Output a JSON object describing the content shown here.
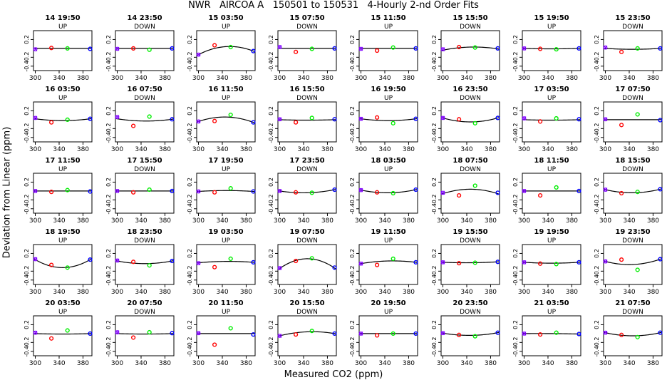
{
  "title": "NWR   AIRCOA A   150501 to 150531   4-Hourly 2-nd Order Fits",
  "chart_data": {
    "type": "scatter",
    "title": "NWR   AIRCOA A   150501 to 150531   4-Hourly 2-nd Order Fits",
    "xlabel": "Measured CO2 (ppm)",
    "ylabel": "Deviation from Linear (ppm)",
    "xlim": [
      297,
      395
    ],
    "ylim": [
      -0.5,
      0.4
    ],
    "xticks": [
      "300",
      "340",
      "380"
    ],
    "yticks": [
      "-0.4",
      "-0.2",
      "0.2"
    ],
    "grid": false,
    "legend": "none",
    "colors": {
      "ref_low": "#8000ff",
      "ref_mid": "#ff0000",
      "ref_mid2": "#00ee00",
      "ref_high": "#0000ff",
      "fit": "#000000"
    },
    "panels": [
      {
        "title": "14 19:50",
        "dir": "UP",
        "points": [
          [
            300,
            -0.02
          ],
          [
            327,
            0.01
          ],
          [
            354,
            0.0
          ],
          [
            392,
            -0.01
          ]
        ],
        "fit": [
          0.0,
          0.0,
          0.0
        ]
      },
      {
        "title": "14 23:50",
        "dir": "DOWN",
        "points": [
          [
            300,
            -0.01
          ],
          [
            327,
            0.0
          ],
          [
            354,
            -0.03
          ],
          [
            392,
            0.0
          ]
        ],
        "fit": [
          0.0,
          0.0,
          0.0
        ]
      },
      {
        "title": "15 03:50",
        "dir": "UP",
        "points": [
          [
            300,
            -0.14
          ],
          [
            327,
            0.07
          ],
          [
            354,
            0.03
          ],
          [
            392,
            -0.06
          ]
        ],
        "fit": [
          -0.14,
          0.04,
          -0.06
        ]
      },
      {
        "title": "15 07:50",
        "dir": "DOWN",
        "points": [
          [
            300,
            0.03
          ],
          [
            327,
            -0.08
          ],
          [
            354,
            -0.01
          ],
          [
            392,
            0.0
          ]
        ],
        "fit": [
          0.0,
          0.0,
          0.0
        ]
      },
      {
        "title": "15 11:50",
        "dir": "UP",
        "points": [
          [
            300,
            -0.01
          ],
          [
            327,
            -0.05
          ],
          [
            354,
            0.02
          ],
          [
            392,
            0.0
          ]
        ],
        "fit": [
          0.0,
          0.0,
          0.0
        ]
      },
      {
        "title": "15 15:50",
        "dir": "DOWN",
        "points": [
          [
            300,
            -0.02
          ],
          [
            327,
            0.03
          ],
          [
            354,
            0.02
          ],
          [
            392,
            0.0
          ]
        ],
        "fit": [
          -0.04,
          0.03,
          -0.01
        ]
      },
      {
        "title": "15 19:50",
        "dir": "UP",
        "points": [
          [
            300,
            0.0
          ],
          [
            327,
            -0.01
          ],
          [
            354,
            -0.02
          ],
          [
            392,
            0.0
          ]
        ],
        "fit": [
          0.0,
          -0.01,
          0.0
        ]
      },
      {
        "title": "15 23:50",
        "dir": "DOWN",
        "points": [
          [
            300,
            0.02
          ],
          [
            327,
            -0.08
          ],
          [
            354,
            0.0
          ],
          [
            392,
            0.0
          ]
        ],
        "fit": [
          0.0,
          -0.02,
          0.0
        ]
      },
      {
        "title": "16 03:50",
        "dir": "UP",
        "points": [
          [
            300,
            0.04
          ],
          [
            327,
            -0.06
          ],
          [
            354,
            0.0
          ],
          [
            392,
            0.02
          ]
        ],
        "fit": [
          0.02,
          -0.02,
          0.02
        ]
      },
      {
        "title": "16 07:50",
        "dir": "DOWN",
        "points": [
          [
            300,
            0.06
          ],
          [
            327,
            -0.14
          ],
          [
            354,
            0.07
          ],
          [
            392,
            0.01
          ]
        ],
        "fit": [
          0.02,
          -0.03,
          0.01
        ]
      },
      {
        "title": "16 11:50",
        "dir": "UP",
        "points": [
          [
            300,
            -0.04
          ],
          [
            327,
            -0.03
          ],
          [
            354,
            0.11
          ],
          [
            392,
            -0.06
          ]
        ],
        "fit": [
          -0.04,
          0.06,
          -0.06
        ]
      },
      {
        "title": "16 15:50",
        "dir": "DOWN",
        "points": [
          [
            300,
            0.01
          ],
          [
            327,
            -0.06
          ],
          [
            354,
            0.04
          ],
          [
            392,
            0.01
          ]
        ],
        "fit": [
          0.0,
          -0.01,
          0.0
        ]
      },
      {
        "title": "16 19:50",
        "dir": "UP",
        "points": [
          [
            300,
            0.02
          ],
          [
            327,
            0.05
          ],
          [
            354,
            -0.08
          ],
          [
            392,
            0.02
          ]
        ],
        "fit": [
          0.02,
          -0.02,
          0.02
        ]
      },
      {
        "title": "16 23:50",
        "dir": "DOWN",
        "points": [
          [
            300,
            0.04
          ],
          [
            327,
            0.01
          ],
          [
            354,
            -0.08
          ],
          [
            392,
            0.04
          ]
        ],
        "fit": [
          0.04,
          -0.05,
          0.04
        ]
      },
      {
        "title": "17 03:50",
        "dir": "UP",
        "points": [
          [
            300,
            0.03
          ],
          [
            327,
            -0.04
          ],
          [
            354,
            0.03
          ],
          [
            392,
            0.01
          ]
        ],
        "fit": [
          0.0,
          -0.01,
          0.0
        ]
      },
      {
        "title": "17 07:50",
        "dir": "DOWN",
        "points": [
          [
            300,
            0.01
          ],
          [
            327,
            -0.12
          ],
          [
            354,
            0.12
          ],
          [
            392,
            -0.01
          ]
        ],
        "fit": [
          0.0,
          0.0,
          0.0
        ]
      },
      {
        "title": "17 11:50",
        "dir": "UP",
        "points": [
          [
            300,
            0.0
          ],
          [
            327,
            -0.02
          ],
          [
            354,
            0.02
          ],
          [
            392,
            -0.01
          ]
        ],
        "fit": [
          0.0,
          0.0,
          0.0
        ]
      },
      {
        "title": "17 15:50",
        "dir": "DOWN",
        "points": [
          [
            300,
            0.0
          ],
          [
            327,
            -0.03
          ],
          [
            354,
            0.03
          ],
          [
            392,
            0.0
          ]
        ],
        "fit": [
          0.0,
          0.0,
          0.0
        ]
      },
      {
        "title": "17 19:50",
        "dir": "UP",
        "points": [
          [
            300,
            -0.01
          ],
          [
            327,
            -0.03
          ],
          [
            354,
            0.06
          ],
          [
            392,
            -0.01
          ]
        ],
        "fit": [
          -0.01,
          0.01,
          -0.01
        ]
      },
      {
        "title": "17 23:50",
        "dir": "DOWN",
        "points": [
          [
            300,
            0.0
          ],
          [
            327,
            -0.03
          ],
          [
            354,
            -0.04
          ],
          [
            392,
            0.03
          ]
        ],
        "fit": [
          0.0,
          -0.04,
          0.03
        ]
      },
      {
        "title": "18 03:50",
        "dir": "UP",
        "points": [
          [
            300,
            0.02
          ],
          [
            327,
            -0.03
          ],
          [
            354,
            -0.05
          ],
          [
            392,
            0.03
          ]
        ],
        "fit": [
          0.02,
          -0.04,
          0.03
        ]
      },
      {
        "title": "18 07:50",
        "dir": "DOWN",
        "points": [
          [
            300,
            -0.04
          ],
          [
            327,
            -0.1
          ],
          [
            354,
            0.12
          ],
          [
            392,
            -0.04
          ]
        ],
        "fit": [
          -0.06,
          0.04,
          -0.06
        ]
      },
      {
        "title": "18 11:50",
        "dir": "UP",
        "points": [
          [
            300,
            0.0
          ],
          [
            327,
            -0.1
          ],
          [
            354,
            0.08
          ],
          [
            392,
            0.0
          ]
        ],
        "fit": [
          0.0,
          0.0,
          0.0
        ]
      },
      {
        "title": "18 15:50",
        "dir": "DOWN",
        "points": [
          [
            300,
            0.03
          ],
          [
            327,
            -0.05
          ],
          [
            354,
            -0.02
          ],
          [
            392,
            0.04
          ]
        ],
        "fit": [
          0.03,
          -0.04,
          0.04
        ]
      },
      {
        "title": "18 19:50",
        "dir": "UP",
        "points": [
          [
            300,
            0.07
          ],
          [
            327,
            -0.06
          ],
          [
            354,
            -0.12
          ],
          [
            392,
            0.06
          ]
        ],
        "fit": [
          0.06,
          -0.12,
          0.06
        ]
      },
      {
        "title": "18 23:50",
        "dir": "DOWN",
        "points": [
          [
            300,
            0.04
          ],
          [
            327,
            0.01
          ],
          [
            354,
            -0.07
          ],
          [
            392,
            0.03
          ]
        ],
        "fit": [
          0.03,
          -0.03,
          0.03
        ]
      },
      {
        "title": "19 03:50",
        "dir": "UP",
        "points": [
          [
            300,
            -0.02
          ],
          [
            327,
            -0.11
          ],
          [
            354,
            0.08
          ],
          [
            392,
            0.0
          ]
        ],
        "fit": [
          -0.01,
          0.02,
          0.0
        ]
      },
      {
        "title": "19 07:50",
        "dir": "DOWN",
        "points": [
          [
            300,
            -0.13
          ],
          [
            327,
            0.03
          ],
          [
            354,
            0.09
          ],
          [
            392,
            -0.12
          ]
        ],
        "fit": [
          -0.14,
          0.08,
          -0.13
        ]
      },
      {
        "title": "19 11:50",
        "dir": "UP",
        "points": [
          [
            300,
            -0.03
          ],
          [
            327,
            -0.06
          ],
          [
            354,
            0.08
          ],
          [
            392,
            0.0
          ]
        ],
        "fit": [
          -0.03,
          0.03,
          0.0
        ]
      },
      {
        "title": "19 15:50",
        "dir": "DOWN",
        "points": [
          [
            300,
            0.0
          ],
          [
            327,
            -0.02
          ],
          [
            354,
            -0.01
          ],
          [
            392,
            0.01
          ]
        ],
        "fit": [
          0.0,
          -0.01,
          0.01
        ]
      },
      {
        "title": "19 19:50",
        "dir": "UP",
        "points": [
          [
            300,
            0.0
          ],
          [
            327,
            -0.03
          ],
          [
            354,
            -0.04
          ],
          [
            392,
            0.0
          ]
        ],
        "fit": [
          0.0,
          -0.02,
          0.0
        ]
      },
      {
        "title": "19 23:50",
        "dir": "DOWN",
        "points": [
          [
            300,
            0.02
          ],
          [
            327,
            0.06
          ],
          [
            354,
            -0.17
          ],
          [
            392,
            0.07
          ]
        ],
        "fit": [
          0.02,
          -0.05,
          0.07
        ]
      },
      {
        "title": "20 03:50",
        "dir": "UP",
        "points": [
          [
            300,
            0.02
          ],
          [
            327,
            -0.11
          ],
          [
            354,
            0.07
          ],
          [
            392,
            0.0
          ]
        ],
        "fit": [
          0.0,
          -0.01,
          0.0
        ]
      },
      {
        "title": "20 07:50",
        "dir": "DOWN",
        "points": [
          [
            300,
            0.03
          ],
          [
            327,
            -0.09
          ],
          [
            354,
            0.03
          ],
          [
            392,
            0.01
          ]
        ],
        "fit": [
          0.0,
          -0.01,
          0.0
        ]
      },
      {
        "title": "20 11:50",
        "dir": "UP",
        "points": [
          [
            300,
            0.01
          ],
          [
            327,
            -0.25
          ],
          [
            354,
            0.12
          ],
          [
            392,
            -0.02
          ]
        ],
        "fit": [
          0.0,
          0.0,
          0.0
        ]
      },
      {
        "title": "20 15:50",
        "dir": "DOWN",
        "points": [
          [
            300,
            -0.05
          ],
          [
            327,
            -0.02
          ],
          [
            354,
            0.06
          ],
          [
            392,
            0.0
          ]
        ],
        "fit": [
          -0.05,
          0.04,
          0.0
        ]
      },
      {
        "title": "20 19:50",
        "dir": "UP",
        "points": [
          [
            300,
            0.0
          ],
          [
            327,
            -0.04
          ],
          [
            354,
            0.0
          ],
          [
            392,
            0.0
          ]
        ],
        "fit": [
          0.0,
          0.0,
          0.0
        ]
      },
      {
        "title": "20 23:50",
        "dir": "DOWN",
        "points": [
          [
            300,
            0.01
          ],
          [
            327,
            -0.03
          ],
          [
            354,
            -0.06
          ],
          [
            392,
            0.02
          ]
        ],
        "fit": [
          0.01,
          -0.04,
          0.02
        ]
      },
      {
        "title": "21 03:50",
        "dir": "UP",
        "points": [
          [
            300,
            0.0
          ],
          [
            327,
            -0.02
          ],
          [
            354,
            0.02
          ],
          [
            392,
            -0.01
          ]
        ],
        "fit": [
          0.0,
          0.0,
          -0.01
        ]
      },
      {
        "title": "21 07:50",
        "dir": "DOWN",
        "points": [
          [
            300,
            0.02
          ],
          [
            327,
            -0.03
          ],
          [
            354,
            -0.08
          ],
          [
            392,
            0.02
          ]
        ],
        "fit": [
          0.02,
          -0.05,
          0.02
        ]
      }
    ]
  }
}
